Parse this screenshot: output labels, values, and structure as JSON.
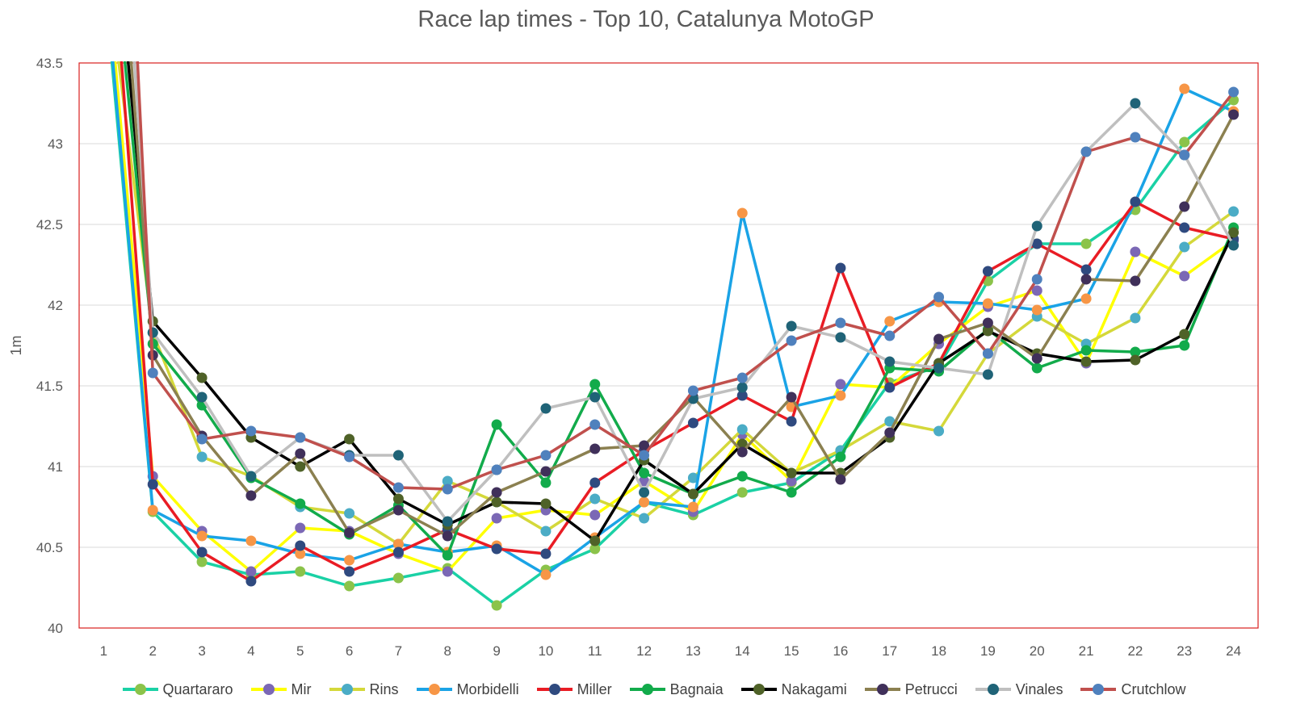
{
  "chart_data": {
    "type": "line",
    "title": "Race lap times - Top 10, Catalunya MotoGP",
    "xlabel": "",
    "ylabel": "1m",
    "ylim": [
      40,
      43.5
    ],
    "yticks": [
      "40",
      "40.5",
      "41",
      "41.5",
      "42",
      "42.5",
      "43",
      "43.5"
    ],
    "yticks_values": [
      40,
      40.5,
      41,
      41.5,
      42,
      42.5,
      43,
      43.5
    ],
    "categories": [
      "1",
      "2",
      "3",
      "4",
      "5",
      "6",
      "7",
      "8",
      "9",
      "10",
      "11",
      "12",
      "13",
      "14",
      "15",
      "16",
      "17",
      "18",
      "19",
      "20",
      "21",
      "22",
      "23",
      "24"
    ],
    "grid": "horizontal",
    "legend_position": "bottom",
    "series": [
      {
        "name": "Quartararo",
        "color": "#1ad1a5",
        "marker": "#8bc34a",
        "values": [
          null,
          40.72,
          40.41,
          40.33,
          40.35,
          40.26,
          40.31,
          40.37,
          40.14,
          40.36,
          40.49,
          40.78,
          40.7,
          40.84,
          40.9,
          41.1,
          41.52,
          41.62,
          42.15,
          42.38,
          42.38,
          42.59,
          43.01,
          43.27
        ]
      },
      {
        "name": "Mir",
        "color": "#ffff00",
        "marker": "#7b68b5",
        "values": [
          null,
          40.94,
          40.6,
          40.35,
          40.62,
          40.6,
          40.46,
          40.35,
          40.68,
          40.73,
          40.7,
          40.91,
          40.72,
          41.2,
          40.91,
          41.51,
          41.49,
          41.76,
          41.99,
          42.09,
          41.64,
          42.33,
          42.18,
          42.4
        ]
      },
      {
        "name": "Rins",
        "color": "#d4d83a",
        "marker": "#4bacc6",
        "values": [
          null,
          41.83,
          41.06,
          40.94,
          40.75,
          40.71,
          40.52,
          40.91,
          40.78,
          40.6,
          40.8,
          40.68,
          40.93,
          41.23,
          40.96,
          41.1,
          41.28,
          41.22,
          41.7,
          41.93,
          41.76,
          41.92,
          42.36,
          42.58
        ]
      },
      {
        "name": "Morbidelli",
        "color": "#1aa3e6",
        "marker": "#f79646",
        "values": [
          null,
          40.73,
          40.57,
          40.54,
          40.46,
          40.42,
          40.52,
          40.47,
          40.51,
          40.33,
          40.56,
          40.78,
          40.75,
          42.57,
          41.37,
          41.44,
          41.9,
          42.02,
          42.01,
          41.97,
          42.04,
          42.64,
          43.34,
          43.2
        ]
      },
      {
        "name": "Miller",
        "color": "#e91c24",
        "marker": "#2f4a7f",
        "values": [
          null,
          40.89,
          40.47,
          40.29,
          40.51,
          40.35,
          40.47,
          40.61,
          40.49,
          40.46,
          40.9,
          41.1,
          41.27,
          41.44,
          41.28,
          42.23,
          41.49,
          41.64,
          42.21,
          42.38,
          42.22,
          42.64,
          42.48,
          42.41
        ]
      },
      {
        "name": "Bagnaia",
        "color": "#12ab4b",
        "marker": "#12ab4b",
        "values": [
          null,
          41.76,
          41.38,
          40.93,
          40.77,
          40.58,
          40.76,
          40.45,
          41.26,
          40.9,
          41.51,
          40.96,
          40.83,
          40.94,
          40.84,
          41.06,
          41.61,
          41.59,
          41.85,
          41.61,
          41.72,
          41.71,
          41.75,
          42.48
        ]
      },
      {
        "name": "Nakagami",
        "color": "#000000",
        "marker": "#4f6228",
        "values": [
          null,
          41.9,
          41.55,
          41.18,
          41.0,
          41.17,
          40.8,
          40.64,
          40.78,
          40.77,
          40.54,
          41.04,
          40.83,
          41.14,
          40.96,
          40.96,
          41.18,
          41.64,
          41.84,
          41.7,
          41.65,
          41.66,
          41.82,
          42.45
        ]
      },
      {
        "name": "Petrucci",
        "color": "#8b8050",
        "marker": "#40305a",
        "values": [
          null,
          41.69,
          41.19,
          40.82,
          41.08,
          40.59,
          40.73,
          40.57,
          40.84,
          40.97,
          41.11,
          41.13,
          41.43,
          41.09,
          41.43,
          40.92,
          41.21,
          41.79,
          41.89,
          41.67,
          42.16,
          42.15,
          42.61,
          43.18
        ]
      },
      {
        "name": "Vinales",
        "color": "#bfbfbf",
        "marker": "#1f6377",
        "values": [
          null,
          41.83,
          41.43,
          40.94,
          41.18,
          41.07,
          41.07,
          40.66,
          40.98,
          41.36,
          41.43,
          40.84,
          41.42,
          41.49,
          41.87,
          41.8,
          41.65,
          41.61,
          41.57,
          42.49,
          42.95,
          43.25,
          42.93,
          42.37
        ]
      },
      {
        "name": "Crutchlow",
        "color": "#c0504d",
        "marker": "#4f81bd",
        "values": [
          null,
          41.58,
          41.17,
          41.22,
          41.18,
          41.06,
          40.87,
          40.86,
          40.98,
          41.07,
          41.26,
          41.07,
          41.47,
          41.55,
          41.78,
          41.89,
          41.81,
          42.05,
          41.7,
          42.16,
          42.95,
          43.04,
          42.93,
          43.32
        ]
      }
    ]
  }
}
